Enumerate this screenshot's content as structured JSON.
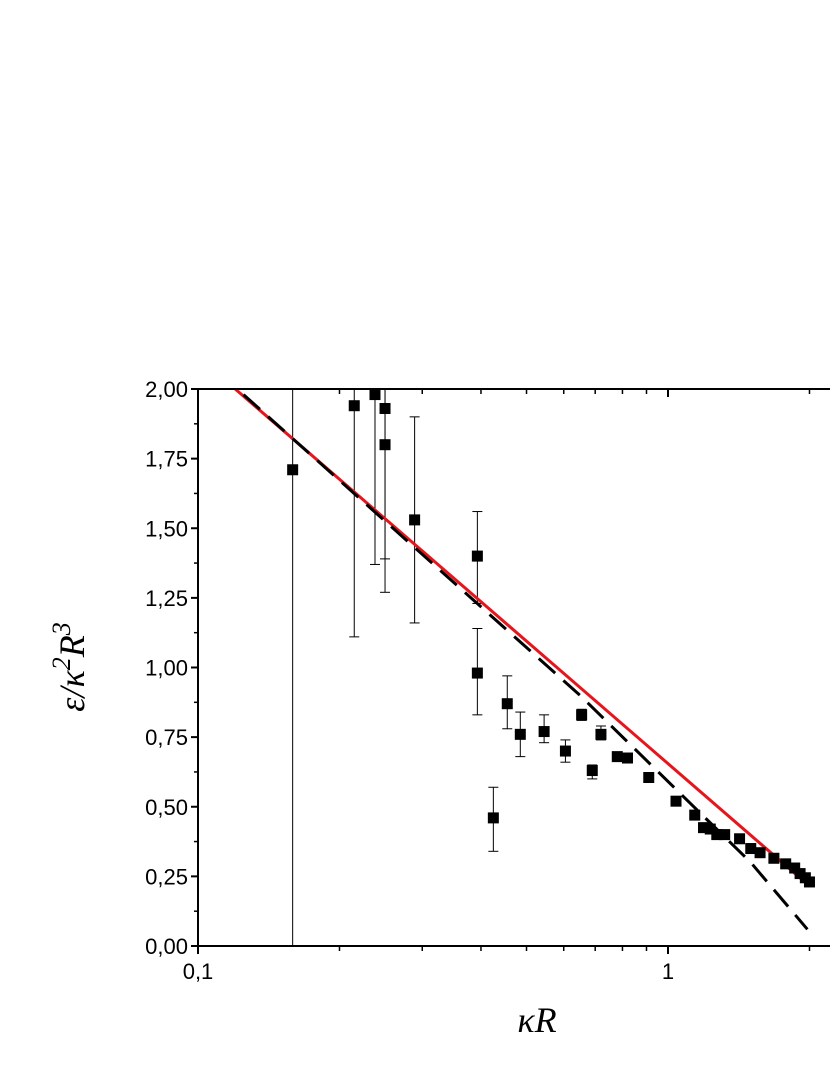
{
  "chart_data": {
    "type": "scatter",
    "xlabel": {
      "main": "κR"
    },
    "ylabel": {
      "parts": [
        "ε/κ",
        "2",
        "R",
        "3"
      ]
    },
    "xscale": "log",
    "xlim": [
      0.1,
      2.0
    ],
    "ylim": [
      0.0,
      2.0
    ],
    "x_tick_labels": [
      {
        "value": 0.1,
        "label": "0,1"
      },
      {
        "value": 1,
        "label": "1"
      }
    ],
    "y_tick_labels": [
      {
        "value": 0.0,
        "label": "0,00"
      },
      {
        "value": 0.25,
        "label": "0,25"
      },
      {
        "value": 0.5,
        "label": "0,50"
      },
      {
        "value": 0.75,
        "label": "0,75"
      },
      {
        "value": 1.0,
        "label": "1,00"
      },
      {
        "value": 1.25,
        "label": "1,25"
      },
      {
        "value": 1.5,
        "label": "1,50"
      },
      {
        "value": 1.75,
        "label": "1,75"
      },
      {
        "value": 2.0,
        "label": "2,00"
      }
    ],
    "grid": false,
    "series": [
      {
        "kind": "points_with_errorbars",
        "color": "#000000",
        "points": [
          {
            "x": 0.159,
            "y": 1.71,
            "lo": 0.0,
            "hi": 2.0
          },
          {
            "x": 0.215,
            "y": 1.94,
            "lo": 1.11,
            "hi": 2.0
          },
          {
            "x": 0.238,
            "y": 1.98,
            "lo": 1.37,
            "hi": 2.0
          },
          {
            "x": 0.25,
            "y": 1.93,
            "lo": 1.39,
            "hi": 2.0
          },
          {
            "x": 0.25,
            "y": 1.8,
            "lo": 1.27,
            "hi": 2.0
          },
          {
            "x": 0.289,
            "y": 1.53,
            "lo": 1.16,
            "hi": 1.9
          },
          {
            "x": 0.393,
            "y": 1.4,
            "lo": 1.23,
            "hi": 1.56
          },
          {
            "x": 0.393,
            "y": 0.98,
            "lo": 0.83,
            "hi": 1.14
          },
          {
            "x": 0.425,
            "y": 0.46,
            "lo": 0.34,
            "hi": 0.57
          },
          {
            "x": 0.455,
            "y": 0.87,
            "lo": 0.78,
            "hi": 0.97
          },
          {
            "x": 0.485,
            "y": 0.76,
            "lo": 0.68,
            "hi": 0.84
          },
          {
            "x": 0.545,
            "y": 0.77,
            "lo": 0.73,
            "hi": 0.83
          },
          {
            "x": 0.605,
            "y": 0.7,
            "lo": 0.66,
            "hi": 0.74
          },
          {
            "x": 0.655,
            "y": 0.83,
            "lo": 0.81,
            "hi": 0.85
          },
          {
            "x": 0.69,
            "y": 0.63,
            "lo": 0.6,
            "hi": 0.65
          },
          {
            "x": 0.72,
            "y": 0.76,
            "lo": 0.74,
            "hi": 0.79
          },
          {
            "x": 0.78,
            "y": 0.68,
            "lo": 0.67,
            "hi": 0.69
          },
          {
            "x": 0.82,
            "y": 0.675,
            "lo": 0.665,
            "hi": 0.685
          },
          {
            "x": 0.91,
            "y": 0.605,
            "lo": 0.6,
            "hi": 0.61
          },
          {
            "x": 1.04,
            "y": 0.52,
            "lo": 0.515,
            "hi": 0.525
          },
          {
            "x": 1.14,
            "y": 0.47,
            "lo": 0.465,
            "hi": 0.475
          },
          {
            "x": 1.19,
            "y": 0.425,
            "lo": 0.42,
            "hi": 0.43
          },
          {
            "x": 1.23,
            "y": 0.42,
            "lo": 0.415,
            "hi": 0.425
          },
          {
            "x": 1.27,
            "y": 0.4,
            "lo": 0.395,
            "hi": 0.405
          },
          {
            "x": 1.32,
            "y": 0.4,
            "lo": 0.395,
            "hi": 0.405
          },
          {
            "x": 1.42,
            "y": 0.385,
            "lo": 0.38,
            "hi": 0.39
          },
          {
            "x": 1.5,
            "y": 0.35,
            "lo": 0.345,
            "hi": 0.355
          },
          {
            "x": 1.57,
            "y": 0.335,
            "lo": 0.33,
            "hi": 0.34
          },
          {
            "x": 1.68,
            "y": 0.315,
            "lo": 0.31,
            "hi": 0.32
          },
          {
            "x": 1.78,
            "y": 0.295,
            "lo": 0.29,
            "hi": 0.3
          },
          {
            "x": 1.86,
            "y": 0.28,
            "lo": 0.275,
            "hi": 0.285
          },
          {
            "x": 1.91,
            "y": 0.26,
            "lo": 0.255,
            "hi": 0.265
          },
          {
            "x": 1.96,
            "y": 0.245,
            "lo": 0.24,
            "hi": 0.25
          },
          {
            "x": 2.0,
            "y": 0.23,
            "lo": 0.225,
            "hi": 0.235
          }
        ]
      },
      {
        "kind": "line",
        "style": "solid",
        "color": "#e8141c",
        "x": [
          0.12,
          2.0
        ],
        "y": [
          2.0,
          0.215
        ]
      },
      {
        "kind": "line",
        "style": "dashed",
        "color": "#000000",
        "x": [
          0.125,
          0.65,
          1.2,
          1.5,
          1.98
        ],
        "y": [
          1.98,
          0.9,
          0.46,
          0.3,
          0.06
        ]
      }
    ]
  }
}
